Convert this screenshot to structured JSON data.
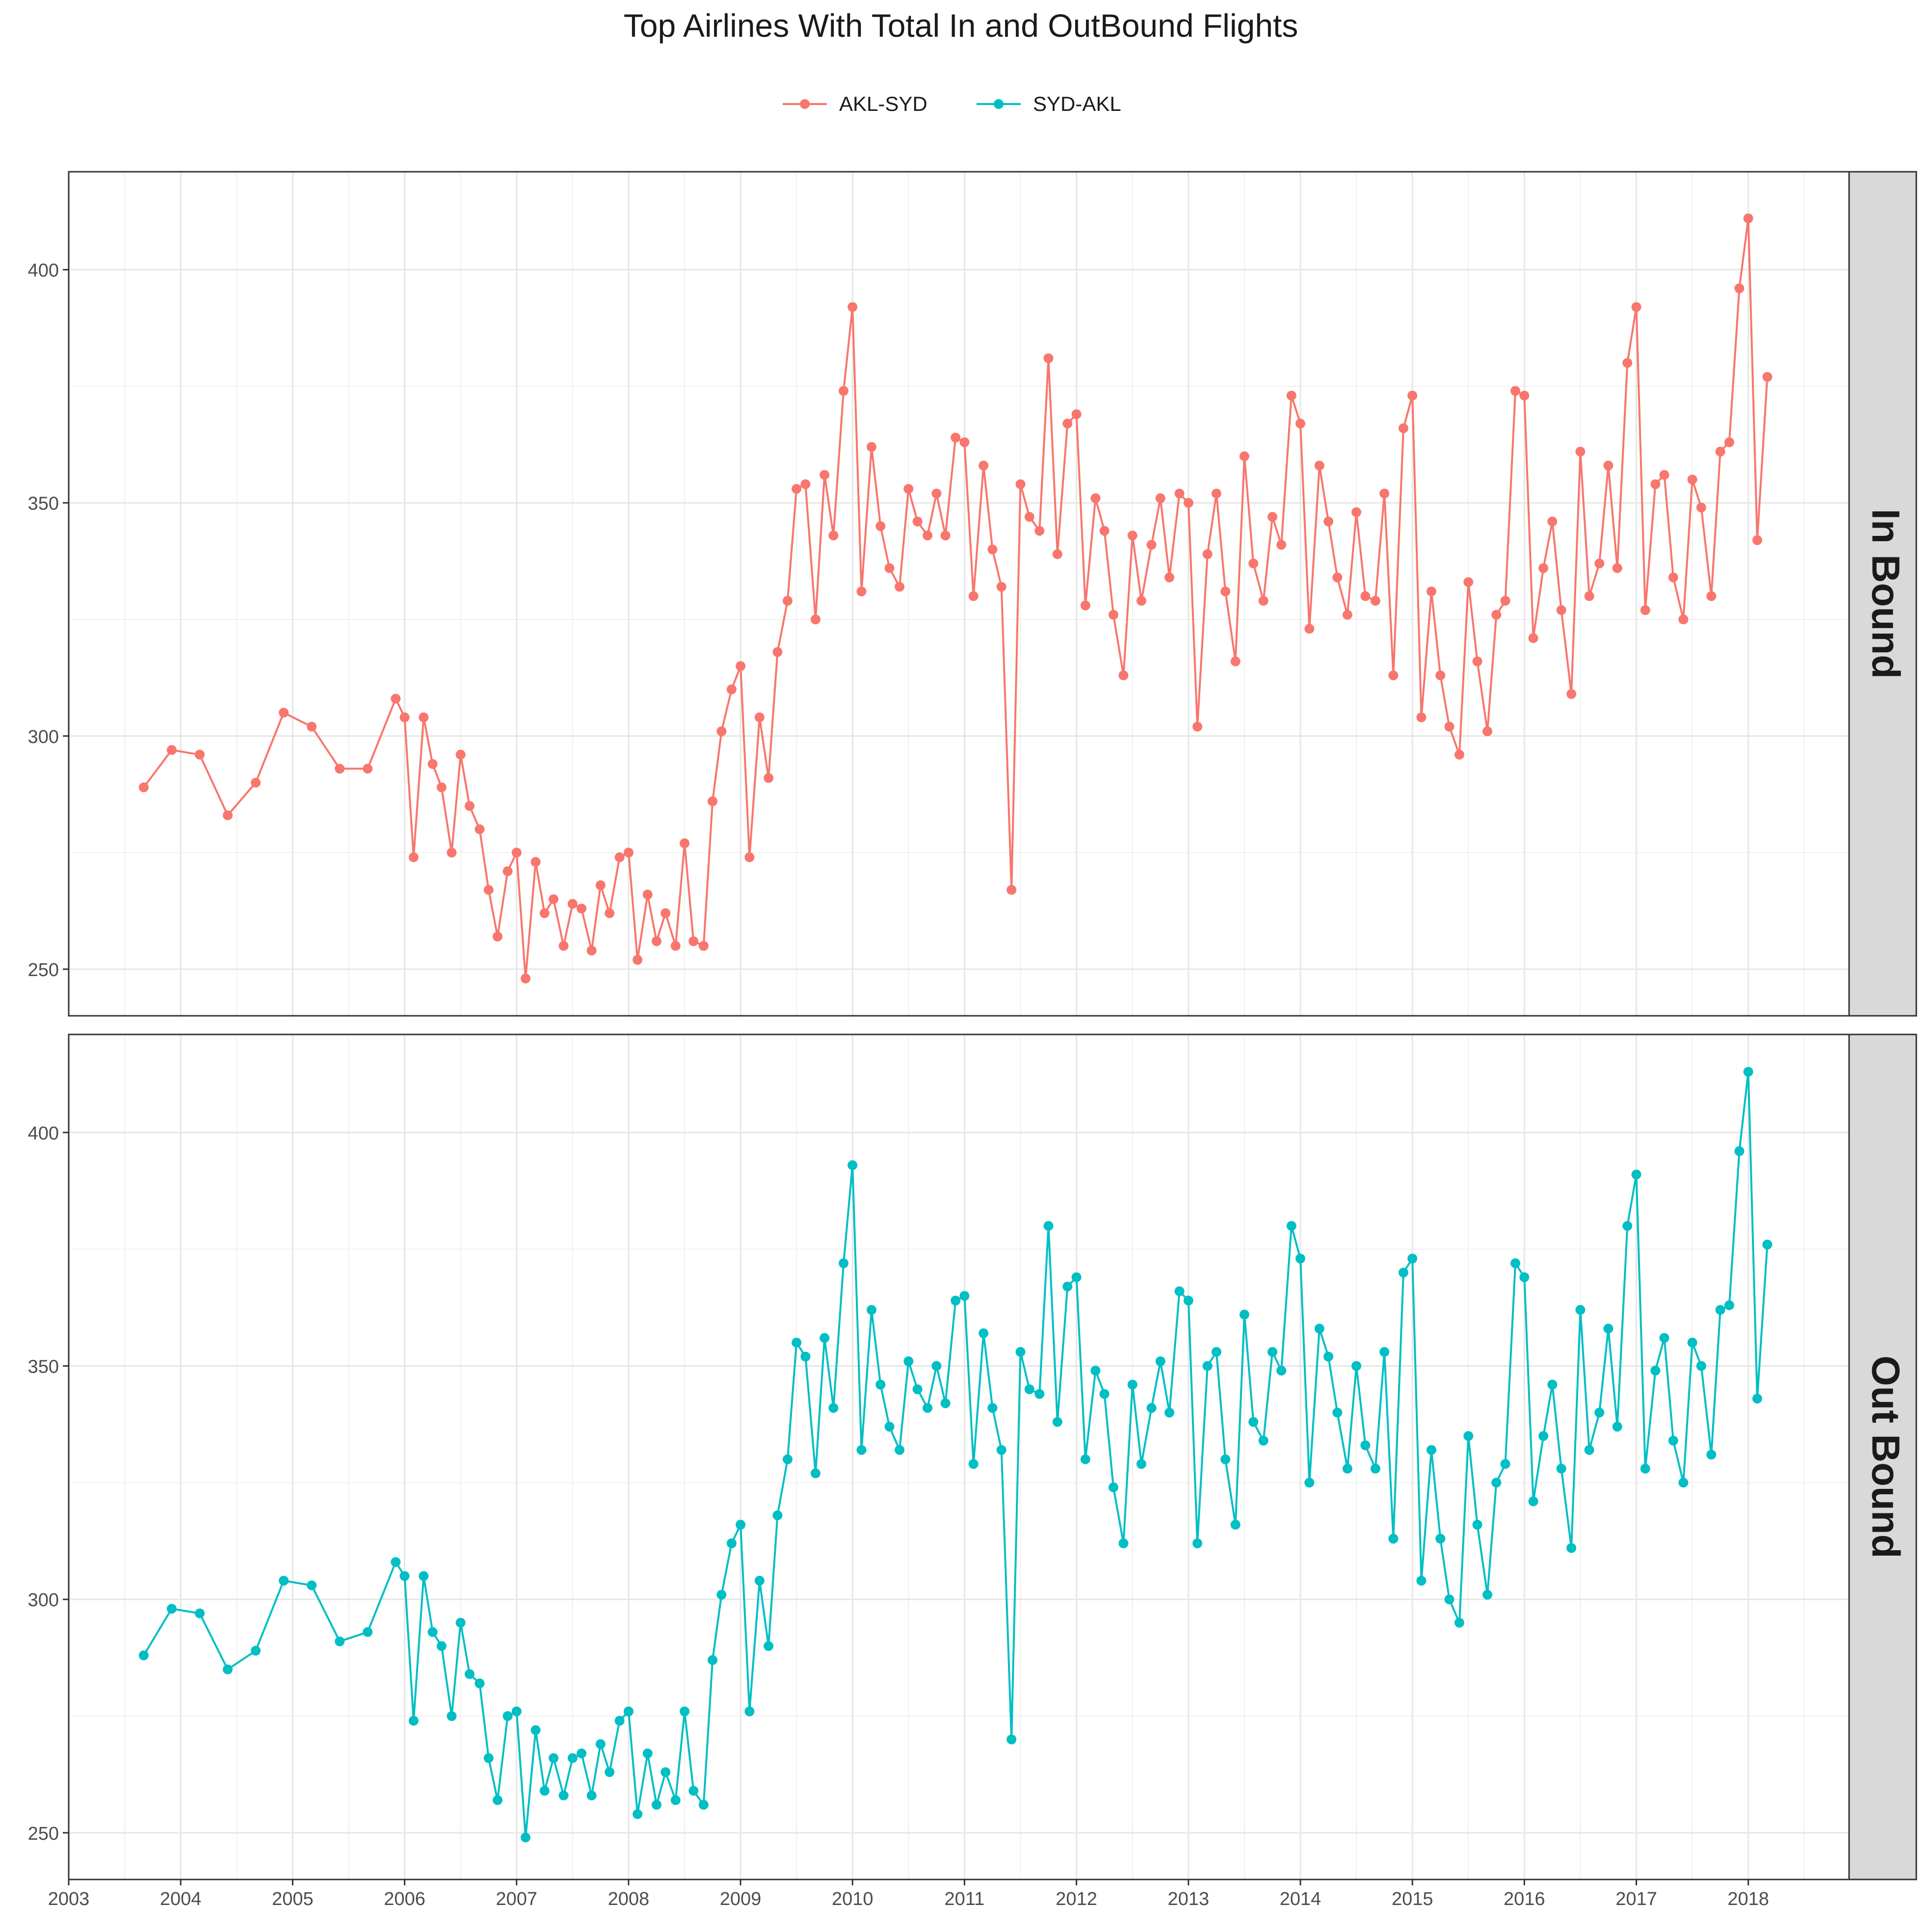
{
  "chart_data": {
    "type": "line",
    "title": "Top Airlines With Total In and OutBound Flights",
    "xlabel": "",
    "ylabel": "",
    "legend_position": "top",
    "grid": true,
    "x_range": [
      2003,
      2018.9
    ],
    "y_range": [
      240,
      421
    ],
    "x_ticks": [
      "2003",
      "2004",
      "2005",
      "2006",
      "2007",
      "2008",
      "2009",
      "2010",
      "2011",
      "2012",
      "2013",
      "2014",
      "2015",
      "2016",
      "2017",
      "2018"
    ],
    "y_ticks": [
      "250",
      "300",
      "350",
      "400"
    ],
    "x_values": [
      2003.67,
      2003.92,
      2004.17,
      2004.42,
      2004.67,
      2004.92,
      2005.17,
      2005.42,
      2005.67,
      2005.92,
      2006.0,
      2006.08,
      2006.17,
      2006.25,
      2006.33,
      2006.42,
      2006.5,
      2006.58,
      2006.67,
      2006.75,
      2006.83,
      2006.92,
      2007.0,
      2007.08,
      2007.17,
      2007.25,
      2007.33,
      2007.42,
      2007.5,
      2007.58,
      2007.67,
      2007.75,
      2007.83,
      2007.92,
      2008.0,
      2008.08,
      2008.17,
      2008.25,
      2008.33,
      2008.42,
      2008.5,
      2008.58,
      2008.67,
      2008.75,
      2008.83,
      2008.92,
      2009.0,
      2009.08,
      2009.17,
      2009.25,
      2009.33,
      2009.42,
      2009.5,
      2009.58,
      2009.67,
      2009.75,
      2009.83,
      2009.92,
      2010.0,
      2010.08,
      2010.17,
      2010.25,
      2010.33,
      2010.42,
      2010.5,
      2010.58,
      2010.67,
      2010.75,
      2010.83,
      2010.92,
      2011.0,
      2011.08,
      2011.17,
      2011.25,
      2011.33,
      2011.42,
      2011.5,
      2011.58,
      2011.67,
      2011.75,
      2011.83,
      2011.92,
      2012.0,
      2012.08,
      2012.17,
      2012.25,
      2012.33,
      2012.42,
      2012.5,
      2012.58,
      2012.67,
      2012.75,
      2012.83,
      2012.92,
      2013.0,
      2013.08,
      2013.17,
      2013.25,
      2013.33,
      2013.42,
      2013.5,
      2013.58,
      2013.67,
      2013.75,
      2013.83,
      2013.92,
      2014.0,
      2014.08,
      2014.17,
      2014.25,
      2014.33,
      2014.42,
      2014.5,
      2014.58,
      2014.67,
      2014.75,
      2014.83,
      2014.92,
      2015.0,
      2015.08,
      2015.17,
      2015.25,
      2015.33,
      2015.42,
      2015.5,
      2015.58,
      2015.67,
      2015.75,
      2015.83,
      2015.92,
      2016.0,
      2016.08,
      2016.17,
      2016.25,
      2016.33,
      2016.42,
      2016.5,
      2016.58,
      2016.67,
      2016.75,
      2016.83,
      2016.92,
      2017.0,
      2017.08,
      2017.17,
      2017.25,
      2017.33,
      2017.42,
      2017.5,
      2017.58,
      2017.67,
      2017.75,
      2017.83,
      2017.92,
      2018.0,
      2018.08,
      2018.17
    ],
    "series": [
      {
        "name": "AKL-SYD",
        "color": "#F8766D",
        "facet": "In Bound",
        "values": [
          289,
          297,
          296,
          283,
          290,
          305,
          302,
          293,
          293,
          308,
          304,
          274,
          304,
          294,
          289,
          275,
          296,
          285,
          280,
          267,
          257,
          271,
          275,
          248,
          273,
          262,
          265,
          255,
          264,
          263,
          254,
          268,
          262,
          274,
          275,
          252,
          266,
          256,
          262,
          255,
          277,
          256,
          255,
          286,
          301,
          310,
          315,
          274,
          304,
          291,
          318,
          329,
          353,
          354,
          325,
          356,
          343,
          374,
          392,
          331,
          362,
          345,
          336,
          332,
          353,
          346,
          343,
          352,
          343,
          364,
          363,
          330,
          358,
          340,
          332,
          267,
          354,
          347,
          344,
          381,
          339,
          367,
          369,
          328,
          351,
          344,
          326,
          313,
          343,
          329,
          341,
          351,
          334,
          352,
          350,
          302,
          339,
          352,
          331,
          316,
          360,
          337,
          329,
          347,
          341,
          373,
          367,
          323,
          358,
          346,
          334,
          326,
          348,
          330,
          329,
          352,
          313,
          366,
          373,
          304,
          331,
          313,
          302,
          296,
          333,
          316,
          301,
          326,
          329,
          374,
          373,
          321,
          336,
          346,
          327,
          309,
          361,
          330,
          337,
          358,
          336,
          380,
          392,
          327,
          354,
          356,
          334,
          325,
          355,
          349,
          330,
          361,
          363,
          396,
          411,
          342,
          377
        ]
      },
      {
        "name": "SYD-AKL",
        "color": "#00BFC4",
        "facet": "Out Bound",
        "values": [
          288,
          298,
          297,
          285,
          289,
          304,
          303,
          291,
          293,
          308,
          305,
          274,
          305,
          293,
          290,
          275,
          295,
          284,
          282,
          266,
          257,
          275,
          276,
          249,
          272,
          259,
          266,
          258,
          266,
          267,
          258,
          269,
          263,
          274,
          276,
          254,
          267,
          256,
          263,
          257,
          276,
          259,
          256,
          287,
          301,
          312,
          316,
          276,
          304,
          290,
          318,
          330,
          355,
          352,
          327,
          356,
          341,
          372,
          393,
          332,
          362,
          346,
          337,
          332,
          351,
          345,
          341,
          350,
          342,
          364,
          365,
          329,
          357,
          341,
          332,
          270,
          353,
          345,
          344,
          380,
          338,
          367,
          369,
          330,
          349,
          344,
          324,
          312,
          346,
          329,
          341,
          351,
          340,
          366,
          364,
          312,
          350,
          353,
          330,
          316,
          361,
          338,
          334,
          353,
          349,
          380,
          373,
          325,
          358,
          352,
          340,
          328,
          350,
          333,
          328,
          353,
          313,
          370,
          373,
          304,
          332,
          313,
          300,
          295,
          335,
          316,
          301,
          325,
          329,
          372,
          369,
          321,
          335,
          346,
          328,
          311,
          362,
          332,
          340,
          358,
          337,
          380,
          391,
          328,
          349,
          356,
          334,
          325,
          355,
          350,
          331,
          362,
          363,
          396,
          413,
          343,
          376
        ]
      }
    ],
    "facets": [
      "In Bound",
      "Out Bound"
    ]
  }
}
